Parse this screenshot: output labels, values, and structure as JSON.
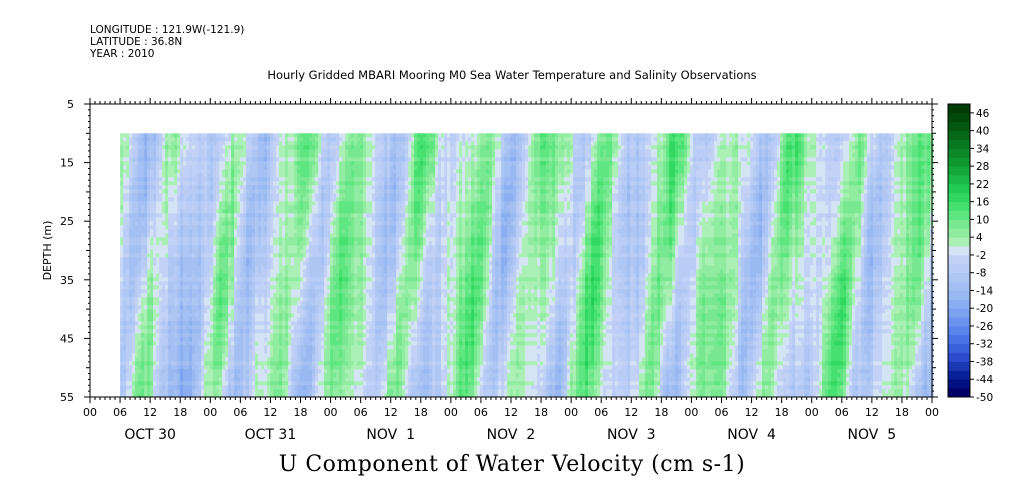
{
  "header": {
    "longitude": "LONGITUDE : 121.9W(-121.9)",
    "latitude": "LATITUDE : 36.8N",
    "year": "YEAR : 2010"
  },
  "chart_data": {
    "type": "heatmap",
    "title": "Hourly Gridded MBARI Mooring M0 Sea Water Temperature and Salinity Observations",
    "xlabel": "U Component of Water Velocity (cm s-1)",
    "ylabel": "DEPTH (m)",
    "y_ticks": [
      5,
      15,
      25,
      35,
      45,
      55
    ],
    "ylim": [
      55,
      5
    ],
    "y_reversed": true,
    "x_hour_ticks": [
      "00",
      "06",
      "12",
      "18",
      "00",
      "06",
      "12",
      "18",
      "00",
      "06",
      "12",
      "18",
      "00",
      "06",
      "12",
      "18",
      "00",
      "06",
      "12",
      "18",
      "00",
      "06",
      "12",
      "18",
      "00",
      "06",
      "12",
      "18",
      "00"
    ],
    "x_day_labels": [
      "OCT 30",
      "OCT 31",
      "NOV  1",
      "NOV  2",
      "NOV  3",
      "NOV  4",
      "NOV  5"
    ],
    "data_depth_range_m": [
      10,
      55
    ],
    "colorbar": {
      "labels": [
        "46",
        "40",
        "34",
        "28",
        "22",
        "16",
        "10",
        "4",
        "-2",
        "-8",
        "-14",
        "-20",
        "-26",
        "-32",
        "-38",
        "-44",
        "-50"
      ],
      "levels": [
        -50,
        -47,
        -44,
        -41,
        -38,
        -35,
        -32,
        -29,
        -26,
        -23,
        -20,
        -17,
        -14,
        -11,
        -8,
        -5,
        -2,
        1,
        4,
        7,
        10,
        13,
        16,
        19,
        22,
        25,
        28,
        31,
        34,
        37,
        40,
        43,
        46,
        49
      ],
      "colors": [
        "#000066",
        "#001080",
        "#0a2299",
        "#1a38b3",
        "#2a4ccc",
        "#3a60dd",
        "#4a72e6",
        "#5a84ec",
        "#6a94ef",
        "#7aa2f0",
        "#8aaef1",
        "#98b8f2",
        "#a4c0f3",
        "#aec6f4",
        "#b8ccf5",
        "#c2d2f6",
        "#d4e4f4",
        "#aaf0b4",
        "#90eca0",
        "#78e890",
        "#5ee680",
        "#46e070",
        "#30d860",
        "#22cc52",
        "#1ab846",
        "#14a83c",
        "#109830",
        "#0c8828",
        "#087820",
        "#066818",
        "#045812",
        "#024a0c",
        "#013c08"
      ]
    },
    "series_description": "U velocity (cm s-1) vs time (Oct 30 06h to Nov 5 24h) and depth (10-55 m)"
  }
}
